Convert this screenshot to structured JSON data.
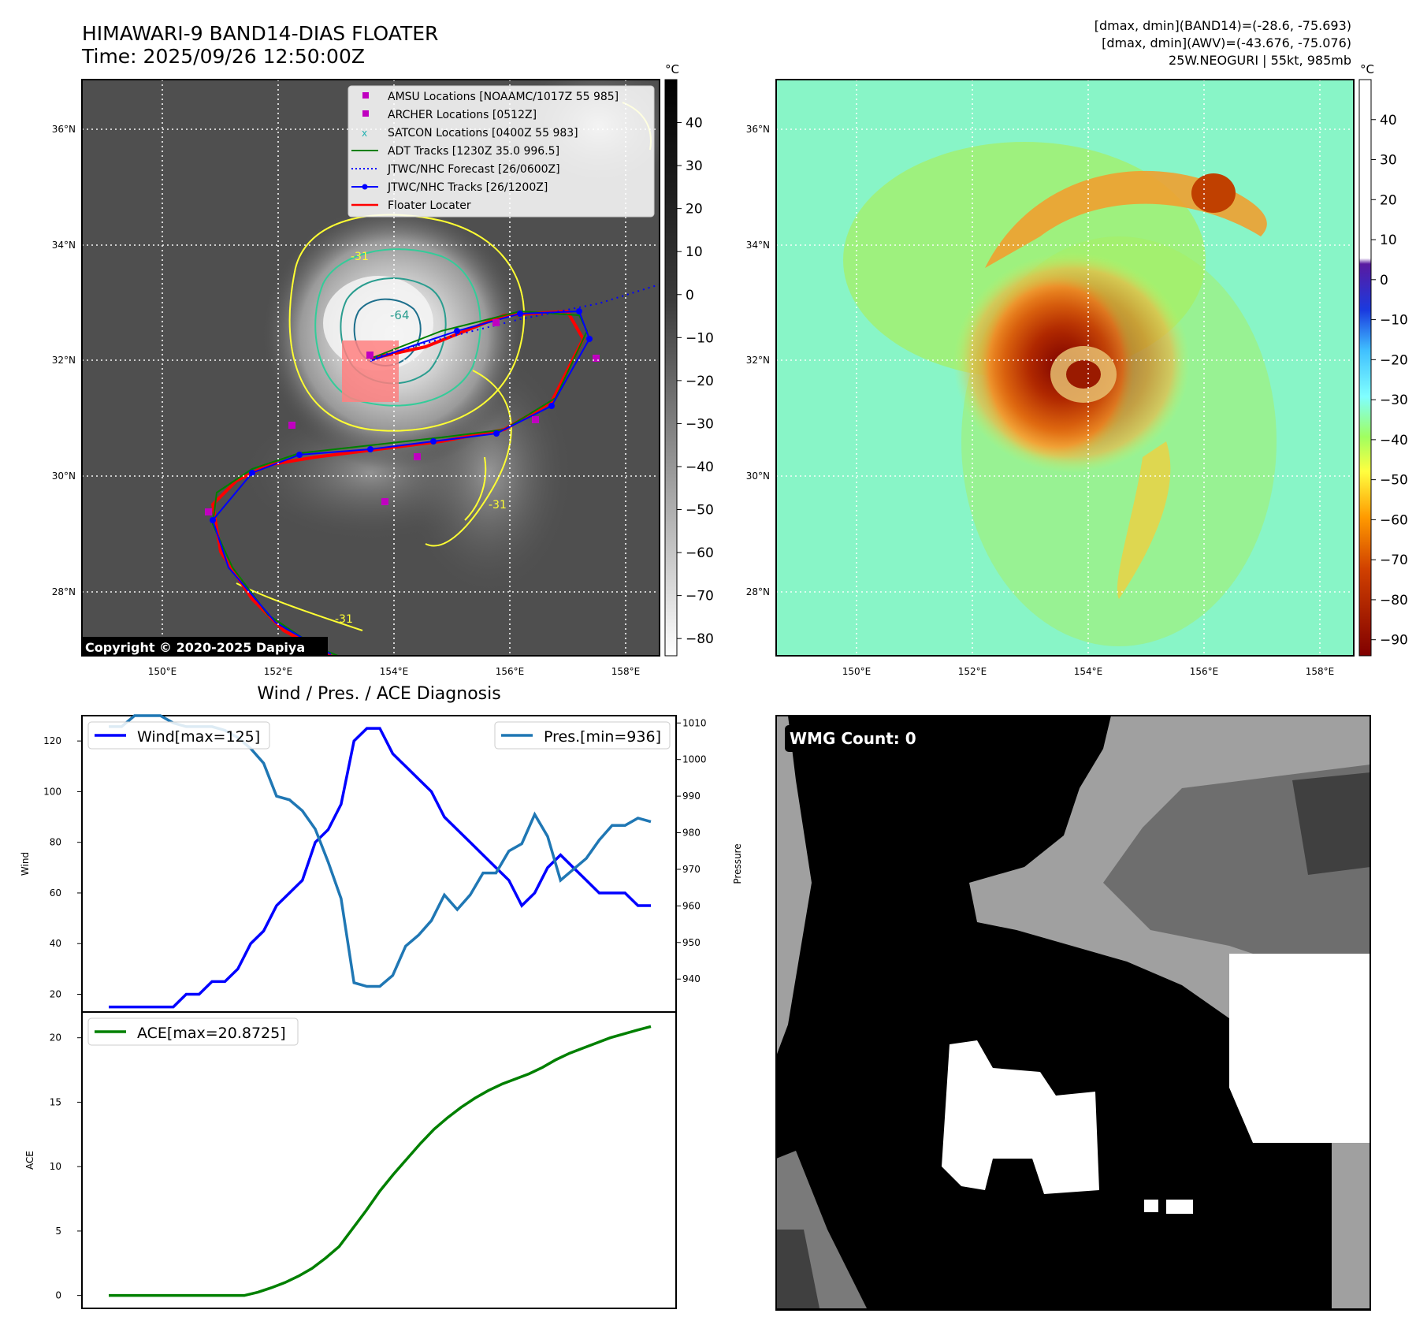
{
  "header": {
    "title_line1": "HIMAWARI-9 BAND14-DIAS FLOATER",
    "title_line2": "Time: 2025/09/26 12:50:00Z",
    "info_line1": "[dmax, dmin](BAND14)=(-28.6, -75.693)",
    "info_line2": "[dmax, dmin](AWV)=(-43.676, -75.076)",
    "info_line3": "25W.NEOGURI | 55kt, 985mb"
  },
  "maps": {
    "lat_labels": [
      "36°N",
      "34°N",
      "32°N",
      "30°N",
      "28°N"
    ],
    "lon_labels": [
      "150°E",
      "152°E",
      "154°E",
      "156°E",
      "158°E"
    ],
    "unit": "°C",
    "copyright": "Copyright © 2020-2025 Dapiya",
    "contour_labels": [
      "-31",
      "-64",
      "-31",
      "-31"
    ],
    "legend": [
      {
        "label": "AMSU Locations [NOAAMC/1017Z 55 985]",
        "marker": "square",
        "color": "#c000c0"
      },
      {
        "label": "ARCHER Locations [0512Z]",
        "marker": "square",
        "color": "#c000c0"
      },
      {
        "label": "SATCON Locations [0400Z 55 983]",
        "marker": "x",
        "color": "#20b0b0"
      },
      {
        "label": "ADT Tracks [1230Z 35.0 996.5]",
        "marker": "line",
        "color": "#008000"
      },
      {
        "label": "JTWC/NHC Forecast [26/0600Z]",
        "marker": "dotted",
        "color": "#0000ff"
      },
      {
        "label": "JTWC/NHC Tracks [26/1200Z]",
        "marker": "line-dot",
        "color": "#0000ff"
      },
      {
        "label": "Floater Locater",
        "marker": "line",
        "color": "#ff0000"
      }
    ],
    "colorbar1_ticks": [
      "40",
      "30",
      "20",
      "10",
      "0",
      "−10",
      "−20",
      "−30",
      "−40",
      "−50",
      "−60",
      "−70",
      "−80"
    ],
    "colorbar2_ticks": [
      "40",
      "30",
      "20",
      "10",
      "0",
      "−10",
      "−20",
      "−30",
      "−40",
      "−50",
      "−60",
      "−70",
      "−80",
      "−90"
    ]
  },
  "chart_data": [
    {
      "type": "line",
      "title": "Wind / Pres. / ACE Diagnosis",
      "ylabel": "Wind",
      "y2label": "Pressure",
      "ylim": [
        13,
        130
      ],
      "y2lim": [
        931,
        1012
      ],
      "yticks": [
        20,
        40,
        60,
        80,
        100,
        120
      ],
      "y2ticks": [
        940,
        950,
        960,
        970,
        980,
        990,
        1000,
        1010
      ],
      "series": [
        {
          "name": "Wind[max=125]",
          "color": "#0000ff",
          "axis": "left",
          "values": [
            15,
            15,
            15,
            15,
            15,
            15,
            20,
            20,
            25,
            25,
            30,
            40,
            45,
            55,
            60,
            65,
            80,
            85,
            95,
            120,
            125,
            125,
            115,
            110,
            105,
            100,
            90,
            85,
            80,
            75,
            70,
            65,
            55,
            60,
            70,
            75,
            70,
            65,
            60,
            60,
            60,
            55,
            55
          ]
        },
        {
          "name": "Pres.[min=936]",
          "color": "#1f77b4",
          "axis": "right",
          "values": [
            1009,
            1009,
            1012,
            1012,
            1012,
            1010,
            1009,
            1009,
            1009,
            1008,
            1006,
            1003,
            999,
            990,
            989,
            986,
            981,
            972,
            962,
            939,
            938,
            938,
            941,
            949,
            952,
            956,
            963,
            959,
            963,
            969,
            969,
            975,
            977,
            985,
            979,
            967,
            970,
            973,
            978,
            982,
            982,
            984,
            983
          ]
        }
      ]
    },
    {
      "type": "line",
      "ylabel": "ACE",
      "ylim": [
        -1,
        22
      ],
      "yticks": [
        0,
        5,
        10,
        15,
        20
      ],
      "series": [
        {
          "name": "ACE[max=20.8725]",
          "color": "#008000",
          "values": [
            0,
            0,
            0,
            0,
            0,
            0,
            0,
            0,
            0,
            0,
            0,
            0.25,
            0.6,
            1,
            1.5,
            2.1,
            2.9,
            3.8,
            5.2,
            6.6,
            8.1,
            9.4,
            10.6,
            11.8,
            12.9,
            13.8,
            14.6,
            15.3,
            15.9,
            16.4,
            16.8,
            17.2,
            17.7,
            18.3,
            18.8,
            19.2,
            19.6,
            20,
            20.3,
            20.6,
            20.87
          ]
        }
      ]
    }
  ],
  "wmg": {
    "label": "WMG Count: 0"
  }
}
